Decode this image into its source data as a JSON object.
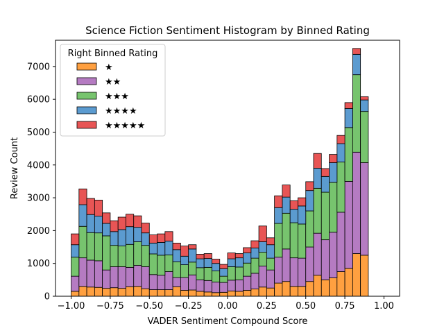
{
  "chart_data": {
    "type": "bar",
    "stacked": true,
    "title": "Science Fiction Sentiment Histogram by Binned Rating",
    "xlabel": "VADER Sentiment Compound Score",
    "ylabel": "Review Count",
    "xlim": [
      -1.1,
      1.1
    ],
    "ylim": [
      0,
      7800
    ],
    "xticks": [
      -1.0,
      -0.75,
      -0.5,
      -0.25,
      0.0,
      0.25,
      0.5,
      0.75,
      1.0
    ],
    "xtick_labels": [
      "−1.00",
      "−0.75",
      "−0.50",
      "−0.25",
      "0.00",
      "0.25",
      "0.50",
      "0.75",
      "1.00"
    ],
    "yticks": [
      0,
      1000,
      2000,
      3000,
      4000,
      5000,
      6000,
      7000
    ],
    "ytick_labels": [
      "0",
      "1000",
      "2000",
      "3000",
      "4000",
      "5000",
      "6000",
      "7000"
    ],
    "bin_edges": [
      -1.0,
      -0.95,
      -0.9,
      -0.85,
      -0.8,
      -0.75,
      -0.7,
      -0.65,
      -0.6,
      -0.55,
      -0.5,
      -0.45,
      -0.4,
      -0.35,
      -0.3,
      -0.25,
      -0.2,
      -0.15,
      -0.1,
      -0.05,
      0.0,
      0.05,
      0.1,
      0.15,
      0.2,
      0.25,
      0.3,
      0.35,
      0.4,
      0.45,
      0.5,
      0.55,
      0.6,
      0.65,
      0.7,
      0.75,
      0.8,
      0.85,
      0.9,
      0.95,
      1.0
    ],
    "legend": {
      "title": "Right Binned Rating",
      "placement": "upper-left"
    },
    "series": [
      {
        "name": "★",
        "color": "#ffa040",
        "values": [
          150,
          300,
          280,
          270,
          240,
          260,
          240,
          290,
          300,
          230,
          200,
          200,
          200,
          290,
          180,
          190,
          150,
          130,
          110,
          120,
          160,
          150,
          180,
          220,
          280,
          250,
          400,
          450,
          300,
          300,
          450,
          640,
          500,
          560,
          750,
          850,
          1300,
          1250,
          0,
          0
        ]
      },
      {
        "name": "★★",
        "color": "#b57bc2",
        "values": [
          460,
          870,
          820,
          810,
          560,
          640,
          660,
          590,
          640,
          670,
          460,
          440,
          550,
          280,
          390,
          460,
          350,
          350,
          320,
          300,
          330,
          350,
          430,
          480,
          640,
          550,
          790,
          990,
          870,
          860,
          1050,
          1280,
          1220,
          1390,
          1810,
          2650,
          3090,
          2820,
          0,
          0
        ]
      },
      {
        "name": "★★★",
        "color": "#77c46e",
        "values": [
          580,
          960,
          840,
          850,
          1040,
          650,
          630,
          700,
          720,
          650,
          630,
          610,
          510,
          480,
          390,
          390,
          370,
          400,
          340,
          190,
          410,
          390,
          400,
          460,
          420,
          360,
          1030,
          1090,
          1070,
          1040,
          1100,
          1370,
          1450,
          1520,
          1530,
          1640,
          2360,
          1560,
          0,
          0
        ]
      },
      {
        "name": "★★★★",
        "color": "#5b9bd0",
        "values": [
          380,
          660,
          550,
          510,
          380,
          420,
          500,
          540,
          440,
          380,
          330,
          390,
          420,
          370,
          260,
          400,
          270,
          270,
          230,
          230,
          240,
          280,
          310,
          310,
          320,
          410,
          480,
          490,
          410,
          550,
          620,
          610,
          480,
          600,
          560,
          580,
          620,
          350,
          0,
          0
        ]
      },
      {
        "name": "★★★★★",
        "color": "#e85555",
        "values": [
          330,
          480,
          490,
          490,
          320,
          330,
          380,
          380,
          350,
          300,
          250,
          260,
          290,
          200,
          310,
          130,
          140,
          150,
          130,
          130,
          180,
          130,
          160,
          220,
          480,
          210,
          360,
          370,
          260,
          250,
          270,
          450,
          240,
          250,
          250,
          180,
          180,
          100,
          0,
          0
        ]
      }
    ]
  }
}
